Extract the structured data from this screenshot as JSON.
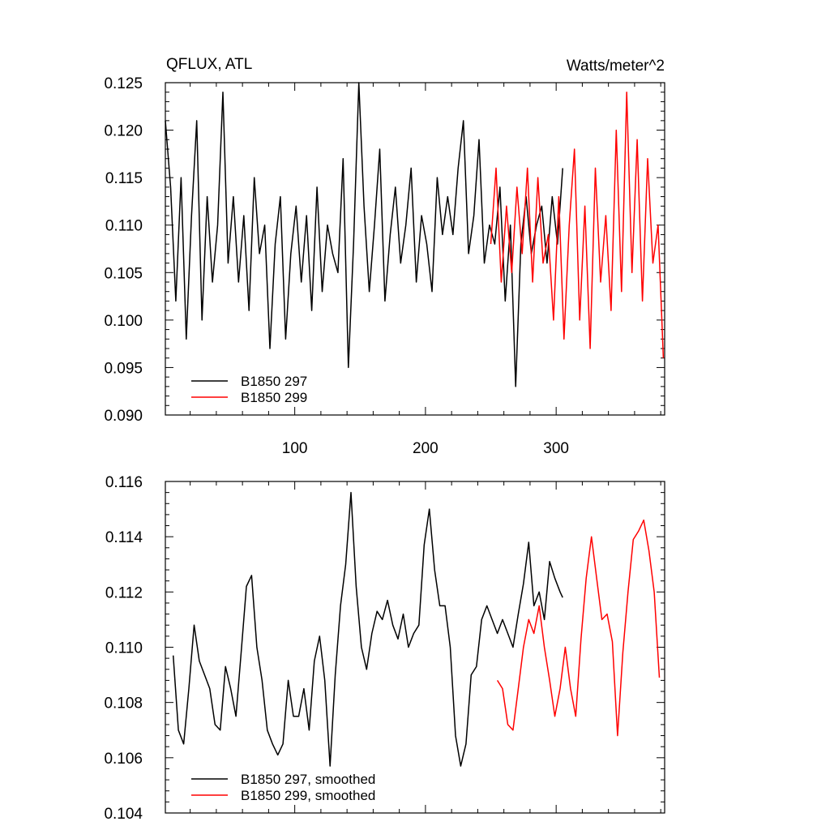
{
  "chart_data": [
    {
      "type": "line",
      "title": "QFLUX, ATL",
      "units": "Watts/meter^2",
      "xlim": [
        1,
        383
      ],
      "ylim": [
        0.09,
        0.125
      ],
      "xticks": [
        100,
        200,
        300
      ],
      "yticks": [
        "0.090",
        "0.095",
        "0.100",
        "0.105",
        "0.110",
        "0.115",
        "0.120",
        "0.125"
      ],
      "legend_position": "bottom-left",
      "series": [
        {
          "name": "B1850 297",
          "color": "#000000",
          "x": [
            1,
            5,
            9,
            13,
            17,
            21,
            25,
            29,
            33,
            37,
            41,
            45,
            49,
            53,
            57,
            61,
            65,
            69,
            73,
            77,
            81,
            85,
            89,
            93,
            97,
            101,
            105,
            109,
            113,
            117,
            121,
            125,
            129,
            133,
            137,
            141,
            145,
            149,
            153,
            157,
            161,
            165,
            169,
            173,
            177,
            181,
            185,
            189,
            193,
            197,
            201,
            205,
            209,
            213,
            217,
            221,
            225,
            229,
            233,
            237,
            241,
            245,
            249,
            253,
            257,
            261,
            265,
            269,
            273,
            277,
            281,
            285,
            289,
            293,
            297,
            301,
            305
          ],
          "y": [
            0.121,
            0.114,
            0.102,
            0.115,
            0.098,
            0.111,
            0.121,
            0.1,
            0.113,
            0.104,
            0.11,
            0.124,
            0.106,
            0.113,
            0.104,
            0.111,
            0.101,
            0.115,
            0.107,
            0.11,
            0.097,
            0.108,
            0.113,
            0.098,
            0.107,
            0.112,
            0.104,
            0.111,
            0.101,
            0.114,
            0.103,
            0.11,
            0.107,
            0.105,
            0.117,
            0.095,
            0.108,
            0.125,
            0.112,
            0.103,
            0.11,
            0.118,
            0.102,
            0.109,
            0.114,
            0.106,
            0.11,
            0.116,
            0.104,
            0.111,
            0.108,
            0.103,
            0.115,
            0.109,
            0.113,
            0.109,
            0.116,
            0.121,
            0.107,
            0.111,
            0.119,
            0.106,
            0.11,
            0.108,
            0.114,
            0.102,
            0.11,
            0.093,
            0.108,
            0.113,
            0.107,
            0.11,
            0.112,
            0.106,
            0.113,
            0.108,
            0.116
          ]
        },
        {
          "name": "B1850 299",
          "color": "#ff0000",
          "x": [
            250,
            254,
            258,
            262,
            266,
            270,
            274,
            278,
            282,
            286,
            290,
            294,
            298,
            302,
            306,
            310,
            314,
            318,
            322,
            326,
            330,
            334,
            338,
            342,
            346,
            350,
            354,
            358,
            362,
            366,
            370,
            374,
            378,
            382
          ],
          "y": [
            0.108,
            0.116,
            0.104,
            0.112,
            0.105,
            0.114,
            0.107,
            0.116,
            0.104,
            0.115,
            0.106,
            0.109,
            0.1,
            0.113,
            0.098,
            0.11,
            0.118,
            0.1,
            0.112,
            0.097,
            0.116,
            0.104,
            0.111,
            0.101,
            0.12,
            0.103,
            0.124,
            0.105,
            0.119,
            0.102,
            0.117,
            0.106,
            0.11,
            0.096
          ]
        }
      ]
    },
    {
      "type": "line",
      "xlim": [
        1,
        383
      ],
      "ylim": [
        0.104,
        0.116
      ],
      "yticks": [
        "0.104",
        "0.106",
        "0.108",
        "0.110",
        "0.112",
        "0.114",
        "0.116"
      ],
      "legend_position": "bottom-left",
      "series": [
        {
          "name": "B1850 297, smoothed",
          "color": "#000000",
          "x": [
            7,
            11,
            15,
            19,
            23,
            27,
            31,
            35,
            39,
            43,
            47,
            51,
            55,
            59,
            63,
            67,
            71,
            75,
            79,
            83,
            87,
            91,
            95,
            99,
            103,
            107,
            111,
            115,
            119,
            123,
            127,
            131,
            135,
            139,
            143,
            147,
            151,
            155,
            159,
            163,
            167,
            171,
            175,
            179,
            183,
            187,
            191,
            195,
            199,
            203,
            207,
            211,
            215,
            219,
            223,
            227,
            231,
            235,
            239,
            243,
            247,
            251,
            255,
            259,
            263,
            267,
            271,
            275,
            279,
            283,
            287,
            291,
            295,
            299,
            303,
            305
          ],
          "y": [
            0.1097,
            0.107,
            0.1065,
            0.1085,
            0.1108,
            0.1095,
            0.109,
            0.1085,
            0.1072,
            0.107,
            0.1093,
            0.1085,
            0.1075,
            0.1098,
            0.1122,
            0.1126,
            0.11,
            0.1088,
            0.107,
            0.1065,
            0.1061,
            0.1065,
            0.1088,
            0.1075,
            0.1075,
            0.1085,
            0.107,
            0.1095,
            0.1104,
            0.1088,
            0.1057,
            0.109,
            0.1115,
            0.113,
            0.1156,
            0.1122,
            0.11,
            0.1092,
            0.1105,
            0.1113,
            0.111,
            0.1117,
            0.1108,
            0.1103,
            0.1112,
            0.11,
            0.1105,
            0.1108,
            0.1137,
            0.115,
            0.1128,
            0.1115,
            0.1115,
            0.11,
            0.1068,
            0.1057,
            0.1065,
            0.109,
            0.1093,
            0.111,
            0.1115,
            0.111,
            0.1105,
            0.111,
            0.1105,
            0.11,
            0.1112,
            0.1123,
            0.1138,
            0.1115,
            0.112,
            0.111,
            0.1131,
            0.1125,
            0.112,
            0.1118
          ]
        },
        {
          "name": "B1850 299, smoothed",
          "color": "#ff0000",
          "x": [
            255,
            259,
            263,
            267,
            271,
            275,
            279,
            283,
            287,
            291,
            295,
            299,
            303,
            307,
            311,
            315,
            319,
            323,
            327,
            331,
            335,
            339,
            343,
            347,
            351,
            355,
            359,
            363,
            367,
            371,
            375,
            379
          ],
          "y": [
            0.1088,
            0.1085,
            0.1072,
            0.107,
            0.1085,
            0.11,
            0.111,
            0.1105,
            0.1115,
            0.11,
            0.1088,
            0.1075,
            0.1085,
            0.11,
            0.1085,
            0.1075,
            0.1103,
            0.1125,
            0.114,
            0.1125,
            0.111,
            0.1112,
            0.1102,
            0.1068,
            0.1098,
            0.112,
            0.1139,
            0.1142,
            0.1146,
            0.1135,
            0.112,
            0.1089
          ]
        }
      ]
    }
  ]
}
